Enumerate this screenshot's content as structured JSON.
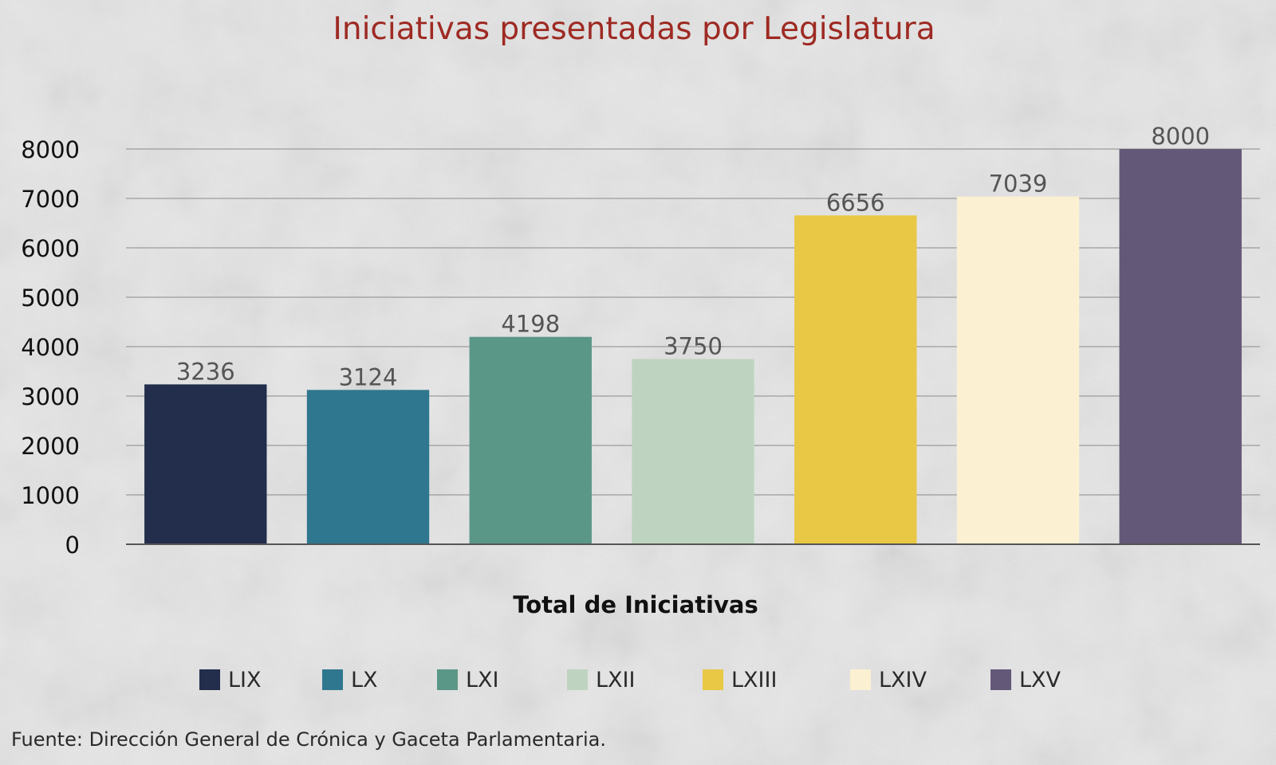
{
  "chart_data": {
    "type": "bar",
    "title": "Iniciativas presentadas por Legislatura",
    "xlabel": "Total de Iniciativas",
    "ylabel": "",
    "categories": [
      "LIX",
      "LX",
      "LXI",
      "LXII",
      "LXIII",
      "LXIV",
      "LXV"
    ],
    "values": [
      3236,
      3124,
      4198,
      3750,
      6656,
      7039,
      8000
    ],
    "colors": [
      "#232d4c",
      "#2f778e",
      "#5b9786",
      "#bed4c0",
      "#e8c845",
      "#fbf0d2",
      "#645878"
    ],
    "ylim": [
      0,
      8000
    ],
    "yticks": [
      0,
      1000,
      2000,
      3000,
      4000,
      5000,
      6000,
      7000,
      8000
    ],
    "grid": true,
    "legend_position": "bottom",
    "source": "Fuente: Dirección General de Crónica y Gaceta Parlamentaria."
  }
}
